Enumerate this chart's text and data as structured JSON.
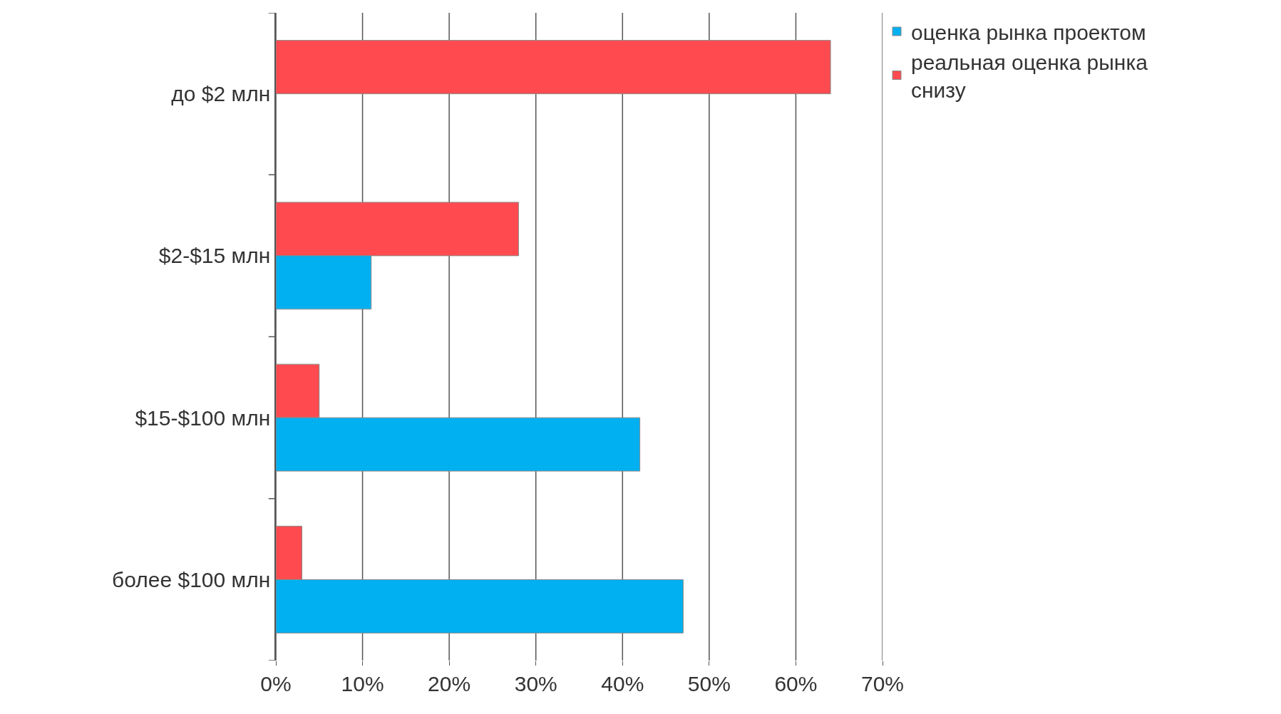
{
  "chart_data": {
    "type": "bar",
    "orientation": "horizontal",
    "categories": [
      "до $2 млн",
      "$2-$15 млн",
      "$15-$100 млн",
      "более $100 млн"
    ],
    "series": [
      {
        "name": "оценка рынка проектом",
        "color": "#00b0f0",
        "values": [
          null,
          11,
          42,
          47
        ]
      },
      {
        "name": "реальная оценка рынка снизу",
        "color": "#ff4b4f",
        "values": [
          64,
          28,
          5,
          3
        ]
      }
    ],
    "xlim": [
      0,
      70
    ],
    "xticks": [
      {
        "value": 0,
        "label": "0%"
      },
      {
        "value": 10,
        "label": "10%"
      },
      {
        "value": 20,
        "label": "20%"
      },
      {
        "value": 30,
        "label": "30%"
      },
      {
        "value": 40,
        "label": "40%"
      },
      {
        "value": 50,
        "label": "50%"
      },
      {
        "value": 60,
        "label": "60%"
      },
      {
        "value": 70,
        "label": "70%"
      }
    ],
    "grid": "x",
    "legend": "top right"
  }
}
